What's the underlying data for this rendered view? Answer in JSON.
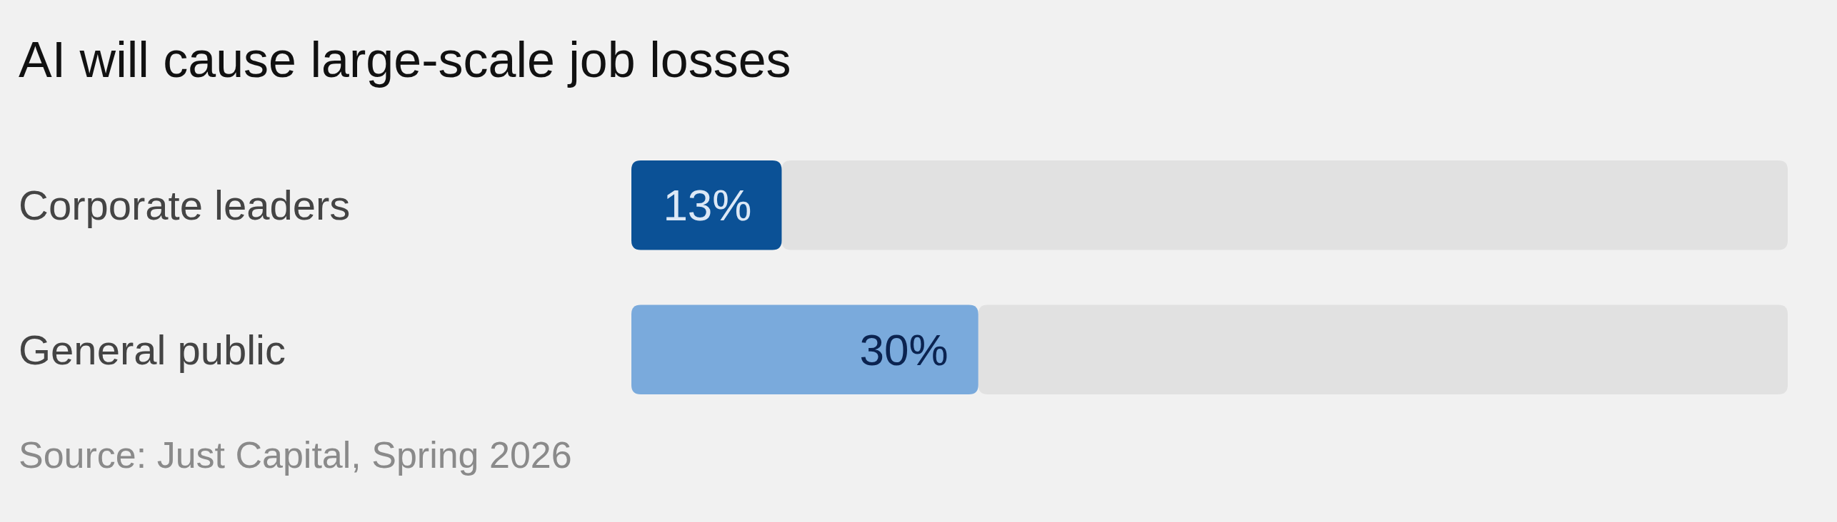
{
  "chart_data": {
    "type": "bar",
    "orientation": "horizontal",
    "stacked": true,
    "title": "AI will cause large-scale job losses",
    "categories": [
      "Corporate leaders",
      "General public"
    ],
    "series": [
      {
        "colors": [
          "#0b5196",
          "#7aaadc"
        ],
        "values": [
          13,
          30
        ],
        "value_labels": [
          "13%",
          "30%"
        ]
      },
      {
        "color": "#e1e1e1",
        "values": [
          87,
          70
        ]
      }
    ],
    "xlim": [
      0,
      100
    ],
    "tick_labels": "y",
    "annotations": [
      "Source: Just Capital, Spring 2026"
    ]
  }
}
